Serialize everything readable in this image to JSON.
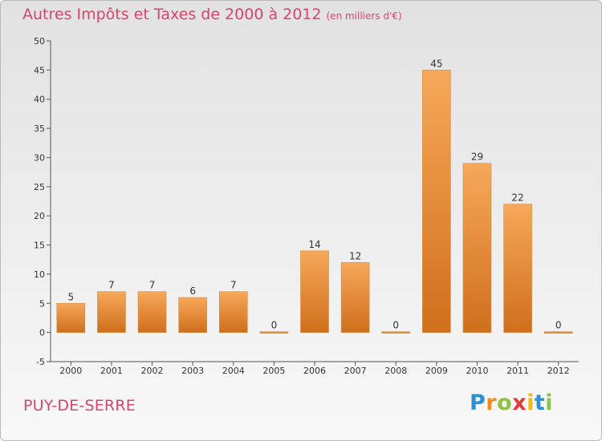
{
  "header": {
    "title": "Autres Impôts et Taxes de 2000 à 2012",
    "unit": "(en milliers d'€)"
  },
  "footer": {
    "commune": "PUY-DE-SERRE",
    "logo": [
      "P",
      "r",
      "o",
      "x",
      "i",
      "t",
      "i"
    ],
    "logo_colors": [
      "#2e8fd3",
      "#f28c1c",
      "#8bc540",
      "#e23b3b",
      "#f2b81c",
      "#2e8fd3",
      "#8bc540"
    ]
  },
  "colors": {
    "bar_top": "#f7a85a",
    "bar_bottom": "#cf6f1c",
    "accent": "#d8456b"
  },
  "chart_data": {
    "type": "bar",
    "title": "Autres Impôts et Taxes de 2000 à 2012",
    "subtitle": "(en milliers d'€)",
    "categories": [
      "2000",
      "2001",
      "2002",
      "2003",
      "2004",
      "2005",
      "2006",
      "2007",
      "2008",
      "2009",
      "2010",
      "2011",
      "2012"
    ],
    "values": [
      5,
      7,
      7,
      6,
      7,
      0,
      14,
      12,
      0,
      45,
      29,
      22,
      0
    ],
    "ylim": [
      -5,
      50
    ],
    "yticks": [
      -5,
      0,
      5,
      10,
      15,
      20,
      25,
      30,
      35,
      40,
      45,
      50
    ],
    "grid": false,
    "data_labels": true
  }
}
